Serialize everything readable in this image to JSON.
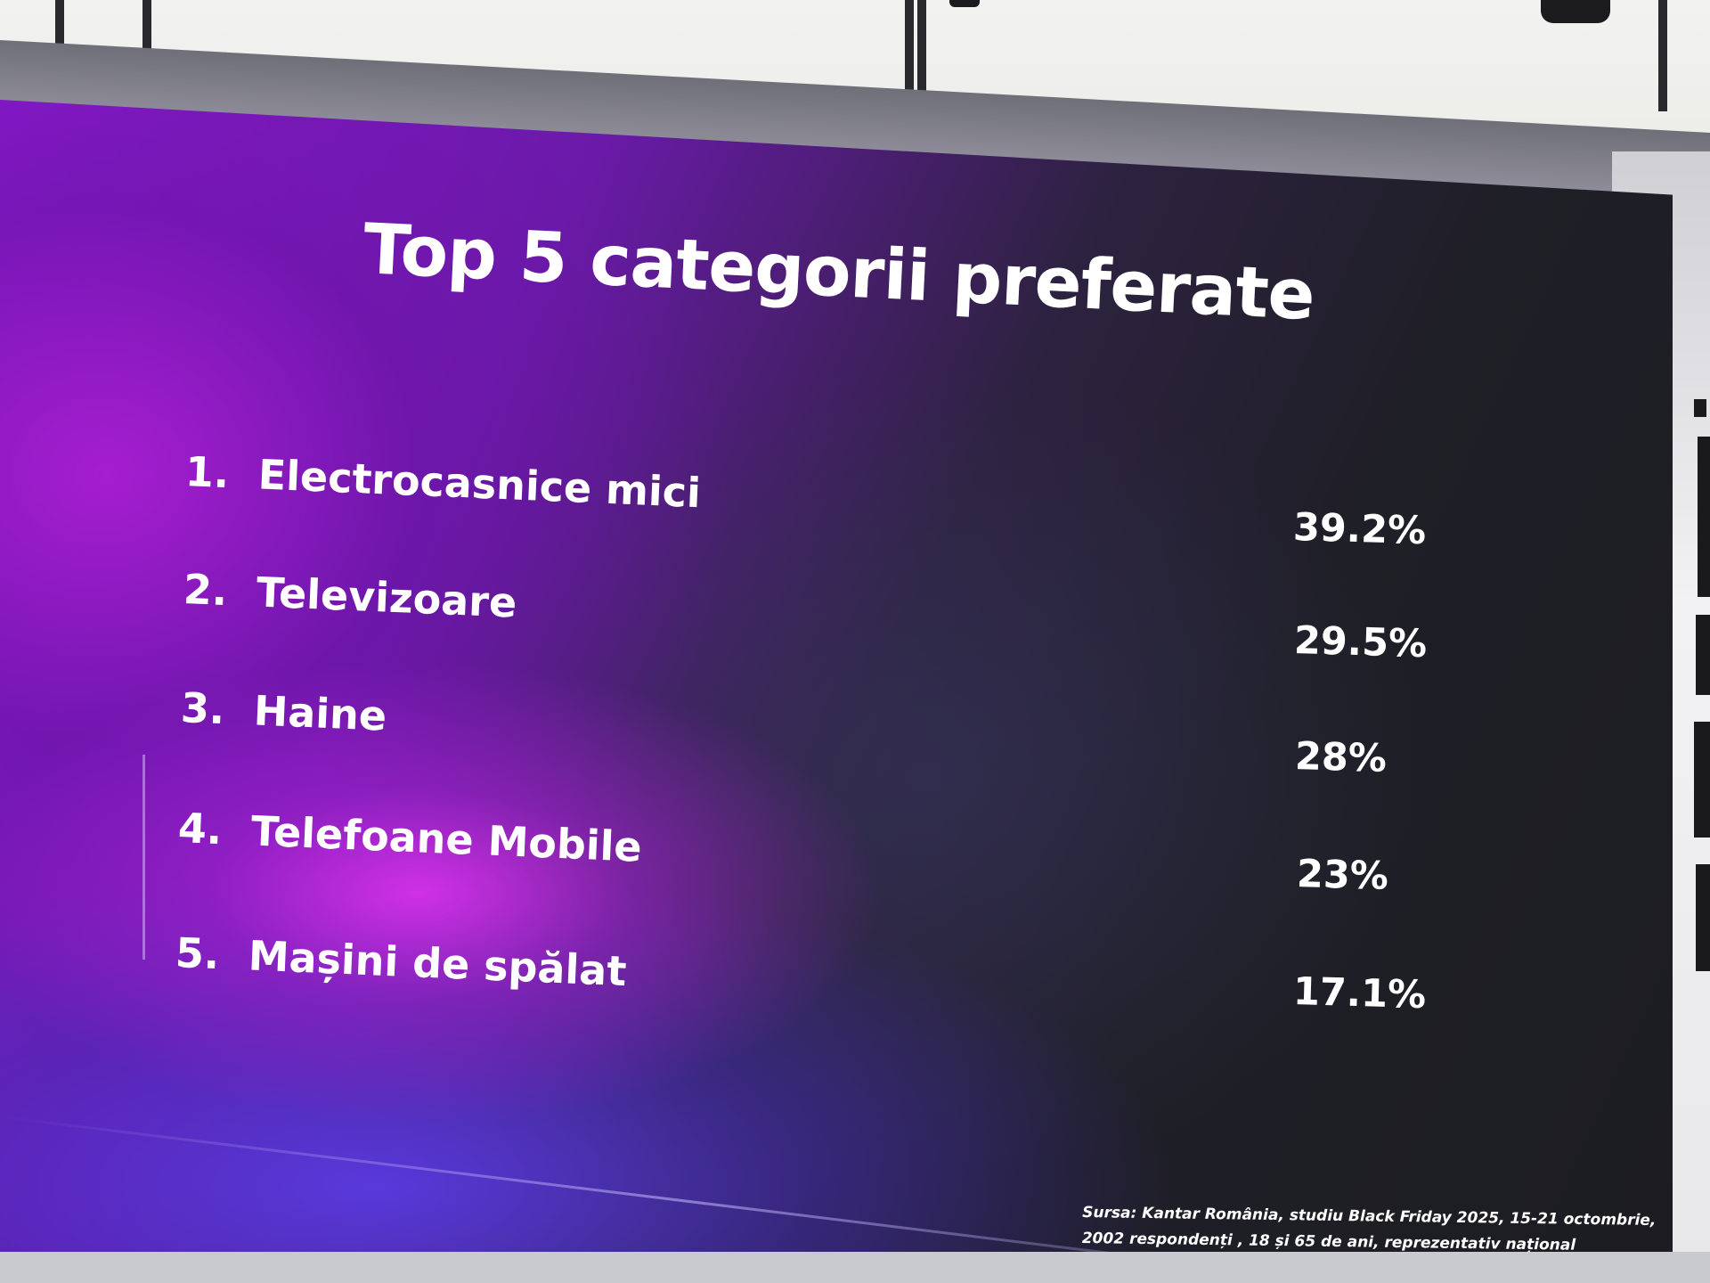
{
  "slide": {
    "title": "Top 5 categorii preferate",
    "items": [
      {
        "rank": "1.",
        "label": "Electrocasnice mici",
        "value": "39.2%"
      },
      {
        "rank": "2.",
        "label": "Televizoare",
        "value": "29.5%"
      },
      {
        "rank": "3.",
        "label": "Haine",
        "value": "28%"
      },
      {
        "rank": "4.",
        "label": "Telefoane Mobile",
        "value": "23%"
      },
      {
        "rank": "5.",
        "label": "Mașini de spălat",
        "value": "17.1%"
      }
    ],
    "source_line1": "Sursa: Kantar România, studiu Black Friday 2025, 15-21 octombrie,",
    "source_line2": "2002 respondenți , 18 și 65 de ani, reprezentativ național"
  },
  "colors": {
    "accent_purple": "#b52ae0",
    "deep_violet": "#5a2fd0",
    "slide_dark": "#1c1c22",
    "text": "#ffffff"
  }
}
